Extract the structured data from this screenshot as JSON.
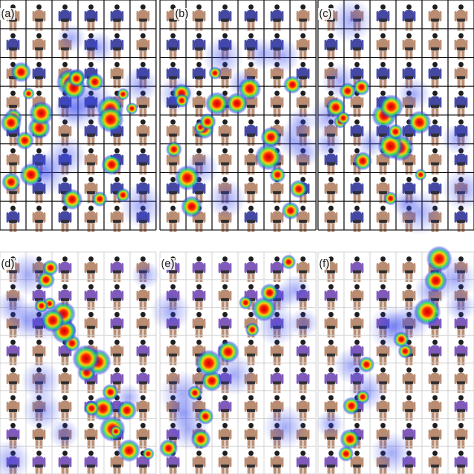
{
  "figure": {
    "panels": [
      {
        "label": "(a)",
        "grid": "dark",
        "body_color": "#3a3f9e",
        "hotspot_count": 22
      },
      {
        "label": "(b)",
        "grid": "dark",
        "body_color": "#3a3f9e",
        "hotspot_count": 18
      },
      {
        "label": "(c)",
        "grid": "dark",
        "body_color": "#3a3f9e",
        "hotspot_count": 14
      },
      {
        "label": "(d)",
        "grid": "light",
        "body_color": "#7a52b8",
        "hotspot_count": 20
      },
      {
        "label": "(e)",
        "grid": "light",
        "body_color": "#7a52b8",
        "hotspot_count": 12
      },
      {
        "label": "(f)",
        "grid": "light",
        "body_color": "#7a52b8",
        "hotspot_count": 10
      }
    ],
    "colors": {
      "grid_dark": "#111111",
      "grid_light": "#cfcfcf",
      "skin": "#b7876c",
      "hair": "#111111",
      "heat_low": "#3344ee",
      "heat_mid": "#22dd66",
      "heat_high": "#ff2200",
      "heat_peak": "#cc0000"
    }
  }
}
